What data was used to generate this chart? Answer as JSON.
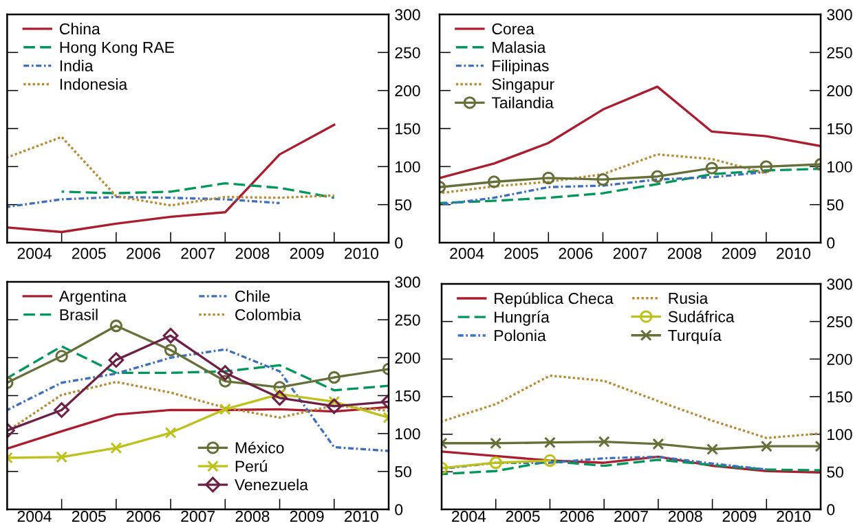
{
  "chart_data": [
    {
      "type": "line",
      "x": [
        2003.5,
        2004.5,
        2005.5,
        2006.5,
        2007.5,
        2008.5,
        2009.5
      ],
      "xlim": [
        2003.5,
        2010.5
      ],
      "xticks": [
        2004,
        {
          "value": 2004.5,
          "label": null
        },
        2005,
        {
          "value": 2005.5,
          "label": null
        },
        2006,
        {
          "value": 2006.5,
          "label": null
        },
        2007,
        {
          "value": 2007.5,
          "label": null
        },
        2008,
        {
          "value": 2008.5,
          "label": null
        },
        2009,
        {
          "value": 2009.5,
          "label": null
        },
        2010
      ],
      "ylim": [
        0,
        300
      ],
      "yticks": [
        0,
        50,
        100,
        150,
        200,
        250,
        300
      ],
      "legend": "top left",
      "series": [
        {
          "name": "China",
          "color": "#ab1c2f",
          "line_style": "solid",
          "values": [
            20,
            14,
            25,
            34,
            40,
            116,
            155
          ]
        },
        {
          "name": "Hong Kong RAE",
          "color": "#00975a",
          "line_style": "dashed",
          "values": [
            null,
            67,
            65,
            67,
            78,
            72,
            59
          ]
        },
        {
          "name": "India",
          "color": "#3d6fbf",
          "line_style": "dashdot",
          "values": [
            47,
            57,
            60,
            59,
            57,
            52,
            null
          ]
        },
        {
          "name": "Indonesia",
          "color": "#b98a2f",
          "line_style": "dotted",
          "values": [
            112,
            139,
            61,
            49,
            60,
            59,
            62
          ]
        }
      ]
    },
    {
      "type": "line",
      "x": [
        2003.5,
        2004.5,
        2005.5,
        2006.5,
        2007.5,
        2008.5,
        2009.5,
        2010.5
      ],
      "xlim": [
        2003.5,
        2010.5
      ],
      "xticks": [
        2004,
        {
          "value": 2004.5,
          "label": null
        },
        2005,
        {
          "value": 2005.5,
          "label": null
        },
        2006,
        {
          "value": 2006.5,
          "label": null
        },
        2007,
        {
          "value": 2007.5,
          "label": null
        },
        2008,
        {
          "value": 2008.5,
          "label": null
        },
        2009,
        {
          "value": 2009.5,
          "label": null
        },
        2010
      ],
      "ylim": [
        0,
        300
      ],
      "yticks": [
        0,
        50,
        100,
        150,
        200,
        250,
        300
      ],
      "legend": "top left",
      "series": [
        {
          "name": "Corea",
          "color": "#ab1c2f",
          "line_style": "solid",
          "values": [
            85,
            104,
            131,
            175,
            205,
            146,
            140,
            127
          ]
        },
        {
          "name": "Malasia",
          "color": "#00975a",
          "line_style": "dashed",
          "values": [
            52,
            55,
            59,
            65,
            77,
            90,
            95,
            97
          ]
        },
        {
          "name": "Filipinas",
          "color": "#3d6fbf",
          "line_style": "dashdot",
          "values": [
            50,
            59,
            73,
            75,
            83,
            86,
            93,
            null
          ]
        },
        {
          "name": "Singapur",
          "color": "#b98a2f",
          "line_style": "dotted",
          "values": [
            65,
            74,
            80,
            90,
            116,
            110,
            91,
            null
          ]
        },
        {
          "name": "Tailandia",
          "color": "#676f38",
          "line_style": "solid",
          "marker": "circle",
          "values": [
            73,
            80,
            85,
            83,
            87,
            98,
            100,
            103
          ]
        }
      ]
    },
    {
      "type": "line",
      "x": [
        2003.5,
        2004.5,
        2005.5,
        2006.5,
        2007.5,
        2008.5,
        2009.5,
        2010.5
      ],
      "xlim": [
        2003.5,
        2010.5
      ],
      "xticks": [
        2004,
        {
          "value": 2004.5,
          "label": null
        },
        2005,
        {
          "value": 2005.5,
          "label": null
        },
        2006,
        {
          "value": 2006.5,
          "label": null
        },
        2007,
        {
          "value": 2007.5,
          "label": null
        },
        2008,
        {
          "value": 2008.5,
          "label": null
        },
        2009,
        {
          "value": 2009.5,
          "label": null
        },
        2010
      ],
      "ylim": [
        0,
        300
      ],
      "yticks": [
        0,
        50,
        100,
        150,
        200,
        250,
        300
      ],
      "legend": [
        "top left",
        "bottom"
      ],
      "series": [
        {
          "name": "Argentina",
          "color": "#ab1c2f",
          "line_style": "solid",
          "values": [
            80,
            103,
            125,
            131,
            131,
            132,
            129,
            135
          ]
        },
        {
          "name": "Brasil",
          "color": "#00975a",
          "line_style": "dashed",
          "values": [
            173,
            215,
            180,
            180,
            182,
            190,
            157,
            163
          ]
        },
        {
          "name": "Chile",
          "color": "#3d6fbf",
          "line_style": "dashdot",
          "values": [
            131,
            167,
            179,
            200,
            211,
            182,
            82,
            77
          ]
        },
        {
          "name": "Colombia",
          "color": "#b98a2f",
          "line_style": "dotted",
          "values": [
            103,
            151,
            168,
            154,
            134,
            121,
            137,
            130
          ]
        },
        {
          "name": "México",
          "color": "#676f38",
          "line_style": "solid",
          "marker": "circle",
          "values": [
            167,
            202,
            242,
            210,
            169,
            161,
            174,
            185
          ]
        },
        {
          "name": "Perú",
          "color": "#bdc21b",
          "line_style": "solid",
          "marker": "cross",
          "values": [
            68,
            69,
            81,
            101,
            132,
            152,
            142,
            121
          ]
        },
        {
          "name": "Venezuela",
          "color": "#6d1f45",
          "line_style": "solid",
          "marker": "diamond",
          "values": [
            104,
            131,
            197,
            229,
            180,
            147,
            136,
            142
          ]
        }
      ]
    },
    {
      "type": "line",
      "x": [
        2003.5,
        2004.5,
        2005.5,
        2006.5,
        2007.5,
        2008.5,
        2009.5,
        2010.5
      ],
      "xlim": [
        2003.5,
        2010.5
      ],
      "xticks": [
        2004,
        {
          "value": 2004.5,
          "label": null
        },
        2005,
        {
          "value": 2005.5,
          "label": null
        },
        2006,
        {
          "value": 2006.5,
          "label": null
        },
        2007,
        {
          "value": 2007.5,
          "label": null
        },
        2008,
        {
          "value": 2008.5,
          "label": null
        },
        2009,
        {
          "value": 2009.5,
          "label": null
        },
        2010
      ],
      "ylim": [
        0,
        300
      ],
      "yticks": [
        0,
        50,
        100,
        150,
        200,
        250,
        300
      ],
      "legend": "top left",
      "series": [
        {
          "name": "República Checa",
          "color": "#ab1c2f",
          "line_style": "solid",
          "values": [
            77,
            71,
            65,
            62,
            70,
            58,
            51,
            49
          ]
        },
        {
          "name": "Hungría",
          "color": "#00975a",
          "line_style": "dashed",
          "values": [
            47,
            51,
            64,
            58,
            66,
            59,
            53,
            52
          ]
        },
        {
          "name": "Polonia",
          "color": "#3d6fbf",
          "line_style": "dashdot",
          "values": [
            54,
            62,
            62,
            68,
            70,
            61,
            53,
            null
          ]
        },
        {
          "name": "Rusia",
          "color": "#b98a2f",
          "line_style": "dotted",
          "values": [
            117,
            140,
            178,
            171,
            144,
            118,
            95,
            101
          ]
        },
        {
          "name": "Sudáfrica",
          "color": "#bdc21b",
          "line_style": "solid",
          "marker": "circle",
          "values": [
            55,
            62,
            65,
            null,
            null,
            null,
            null,
            null
          ]
        },
        {
          "name": "Turquía",
          "color": "#676f38",
          "line_style": "solid",
          "marker": "cross",
          "values": [
            88,
            88,
            89,
            90,
            87,
            80,
            84,
            84
          ]
        }
      ]
    }
  ]
}
